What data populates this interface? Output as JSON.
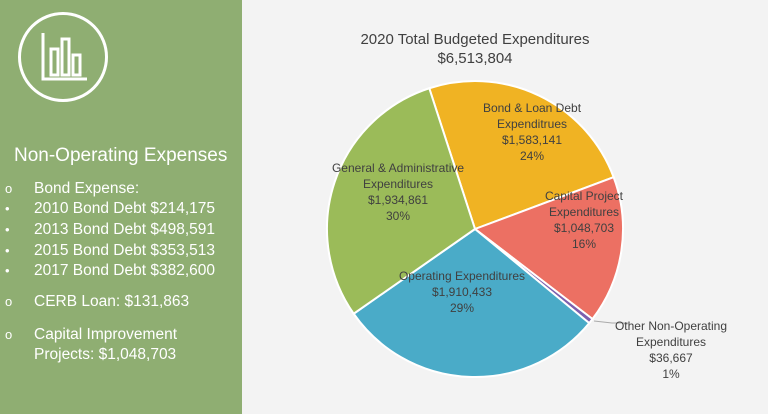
{
  "panel": {
    "title": "Non-Operating Expenses",
    "items": [
      {
        "bullet": "o",
        "text": "Bond Expense:"
      },
      {
        "bullet": "•",
        "text": "2010 Bond Debt  $214,175"
      },
      {
        "bullet": "•",
        "text": "2013 Bond Debt  $498,591"
      },
      {
        "bullet": "•",
        "text": "2015 Bond Debt  $353,513"
      },
      {
        "bullet": "•",
        "text": "2017 Bond Debt  $382,600"
      },
      {
        "bullet": "o",
        "text": "CERB Loan:  $131,863"
      },
      {
        "bullet": "o",
        "text": "Capital Improvement"
      },
      {
        "bullet": "",
        "text": "Projects:  $1,048,703"
      }
    ],
    "icon": "bar-chart-icon"
  },
  "chart_data": {
    "type": "pie",
    "title": "2020 Total Budgeted Expenditures",
    "subtitle": "$6,513,804",
    "slices": [
      {
        "label": "Bond & Loan Debt Expenditrues",
        "value": 1583141,
        "value_label": "$1,583,141",
        "percent": "24%",
        "color": "#f0b323"
      },
      {
        "label": "Capital Project Expenditures",
        "value": 1048703,
        "value_label": "$1,048,703",
        "percent": "16%",
        "color": "#ec7063"
      },
      {
        "label": "Other Non-Operating Expenditures",
        "value": 36667,
        "value_label": "$36,667",
        "percent": "1%",
        "color": "#7d5fae"
      },
      {
        "label": "Operating Expenditures",
        "value": 1910433,
        "value_label": "$1,910,433",
        "percent": "29%",
        "color": "#4aabc8"
      },
      {
        "label": "General & Administrative Expenditures",
        "value": 1934861,
        "value_label": "$1,934,861",
        "percent": "30%",
        "color": "#9bbb59"
      }
    ]
  }
}
